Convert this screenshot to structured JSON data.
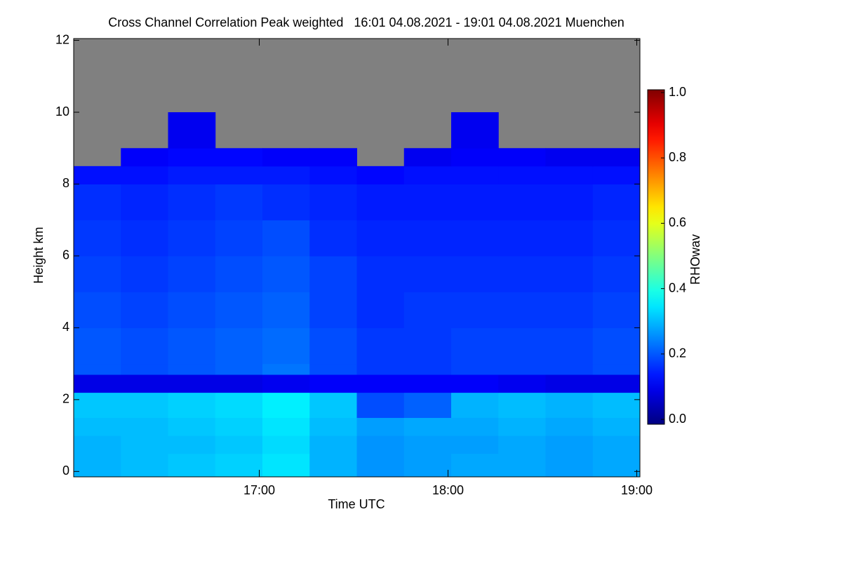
{
  "chart_data": {
    "type": "heatmap",
    "title": "Cross Channel Correlation Peak weighted   16:01 04.08.2021 - 19:01 04.08.2021 Muenchen",
    "x_label": "Time UTC",
    "y_label": "Height km",
    "colorbar_label": "RHOwav",
    "xlim": [
      961,
      1141
    ],
    "xticks": [
      {
        "value": 1020,
        "label": "17:00"
      },
      {
        "value": 1080,
        "label": "18:00"
      },
      {
        "value": 1140,
        "label": "19:00"
      }
    ],
    "ylim": [
      -0.15,
      12.05
    ],
    "yticks": [
      0,
      2,
      4,
      6,
      8,
      10,
      12
    ],
    "zlim": [
      0,
      1
    ],
    "zticks": [
      {
        "value": 0,
        "label": "0.0"
      },
      {
        "value": 0.2,
        "label": "0.2"
      },
      {
        "value": 0.4,
        "label": "0.4"
      },
      {
        "value": 0.6,
        "label": "0.6"
      },
      {
        "value": 0.8,
        "label": "0.8"
      },
      {
        "value": 1,
        "label": "1.0"
      }
    ],
    "colormap": "jet",
    "missing_color": "#808080",
    "x_edges": [
      961,
      976,
      991,
      1006,
      1021,
      1036,
      1051,
      1066,
      1081,
      1096,
      1111,
      1126,
      1141
    ],
    "y_edges": [
      -0.15,
      0.5,
      1,
      1.5,
      2.2,
      2.7,
      3,
      4,
      5,
      6,
      7,
      8,
      8.5,
      9,
      10,
      12.05
    ],
    "z": [
      [
        0.3,
        0.31,
        0.32,
        0.33,
        0.35,
        0.3,
        0.27,
        0.28,
        0.29,
        0.29,
        0.28,
        0.29
      ],
      [
        0.3,
        0.31,
        0.31,
        0.32,
        0.34,
        0.3,
        0.27,
        0.28,
        0.28,
        0.29,
        0.28,
        0.29
      ],
      [
        0.31,
        0.31,
        0.32,
        0.33,
        0.35,
        0.31,
        0.28,
        0.29,
        0.29,
        0.3,
        0.29,
        0.3
      ],
      [
        0.32,
        0.32,
        0.33,
        0.34,
        0.36,
        0.32,
        0.2,
        0.22,
        0.3,
        0.31,
        0.3,
        0.31
      ],
      [
        0.1,
        0.1,
        0.1,
        0.1,
        0.11,
        0.12,
        0.12,
        0.12,
        0.12,
        0.11,
        0.1,
        0.1
      ],
      [
        0.21,
        0.2,
        0.21,
        0.22,
        0.24,
        0.2,
        0.18,
        0.18,
        0.19,
        0.19,
        0.19,
        0.2
      ],
      [
        0.21,
        0.2,
        0.21,
        0.22,
        0.23,
        0.2,
        0.18,
        0.18,
        0.19,
        0.19,
        0.19,
        0.2
      ],
      [
        0.2,
        0.19,
        0.2,
        0.21,
        0.22,
        0.19,
        0.17,
        0.18,
        0.18,
        0.18,
        0.18,
        0.19
      ],
      [
        0.19,
        0.18,
        0.19,
        0.2,
        0.21,
        0.19,
        0.17,
        0.17,
        0.17,
        0.17,
        0.17,
        0.18
      ],
      [
        0.18,
        0.17,
        0.18,
        0.19,
        0.2,
        0.17,
        0.16,
        0.16,
        0.16,
        0.16,
        0.16,
        0.17
      ],
      [
        0.17,
        0.16,
        0.17,
        0.18,
        0.17,
        0.16,
        0.15,
        0.15,
        0.15,
        0.15,
        0.15,
        0.16
      ],
      [
        0.14,
        0.14,
        0.15,
        0.15,
        0.15,
        0.14,
        0.13,
        0.14,
        0.14,
        0.14,
        0.14,
        0.14
      ],
      [
        null,
        0.12,
        0.13,
        0.13,
        0.12,
        0.12,
        null,
        0.11,
        0.12,
        0.12,
        0.11,
        0.11
      ],
      [
        null,
        null,
        0.11,
        null,
        null,
        null,
        null,
        null,
        0.11,
        null,
        null,
        null
      ],
      [
        null,
        null,
        null,
        null,
        null,
        null,
        null,
        null,
        null,
        null,
        null,
        null
      ]
    ]
  }
}
